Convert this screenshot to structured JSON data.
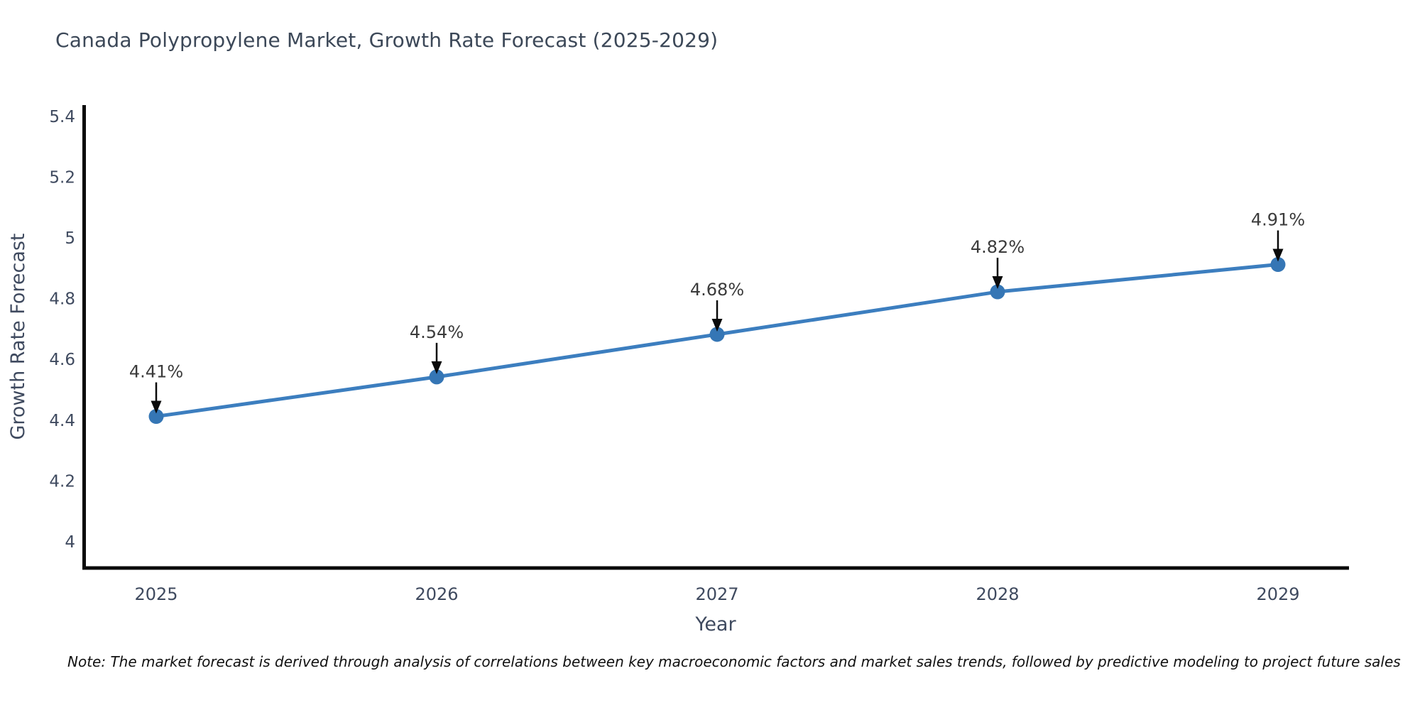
{
  "title": "Canada Polypropylene Market, Growth Rate Forecast (2025-2029)",
  "note": "Note: The market forecast is derived through analysis of correlations between key macroeconomic factors and market sales trends, followed by predictive modeling to project future sales",
  "chart_data": {
    "type": "line",
    "title": "Canada Polypropylene Market, Growth Rate Forecast (2025-2029)",
    "x": [
      2025,
      2026,
      2027,
      2028,
      2029
    ],
    "x_labels": [
      "2025",
      "2026",
      "2027",
      "2028",
      "2029"
    ],
    "series": [
      {
        "name": "Growth Rate Forecast",
        "values": [
          4.41,
          4.54,
          4.68,
          4.82,
          4.91
        ]
      }
    ],
    "point_labels": [
      "4.41%",
      "4.54%",
      "4.68%",
      "4.82%",
      "4.91%"
    ],
    "xlabel": "Year",
    "ylabel": "Growth Rate Forecast",
    "yticks": [
      {
        "value": 4.0,
        "label": "4"
      },
      {
        "value": 4.2,
        "label": "4.2"
      },
      {
        "value": 4.4,
        "label": "4.4"
      },
      {
        "value": 4.6,
        "label": "4.6"
      },
      {
        "value": 4.8,
        "label": "4.8"
      },
      {
        "value": 5.0,
        "label": "5"
      },
      {
        "value": 5.2,
        "label": "5.2"
      },
      {
        "value": 5.4,
        "label": "5.4"
      }
    ],
    "ylim": [
      3.91,
      5.42
    ],
    "grid": false,
    "legend": "none",
    "colors": {
      "line": "#3c7ebf",
      "marker": "#3576b5",
      "axis": "#0a0a0a",
      "arrow": "#0a0a0a",
      "annotation_text": "#3b3b3b",
      "tick_text": "#3f4a5f",
      "title_text": "#3c4858"
    }
  }
}
